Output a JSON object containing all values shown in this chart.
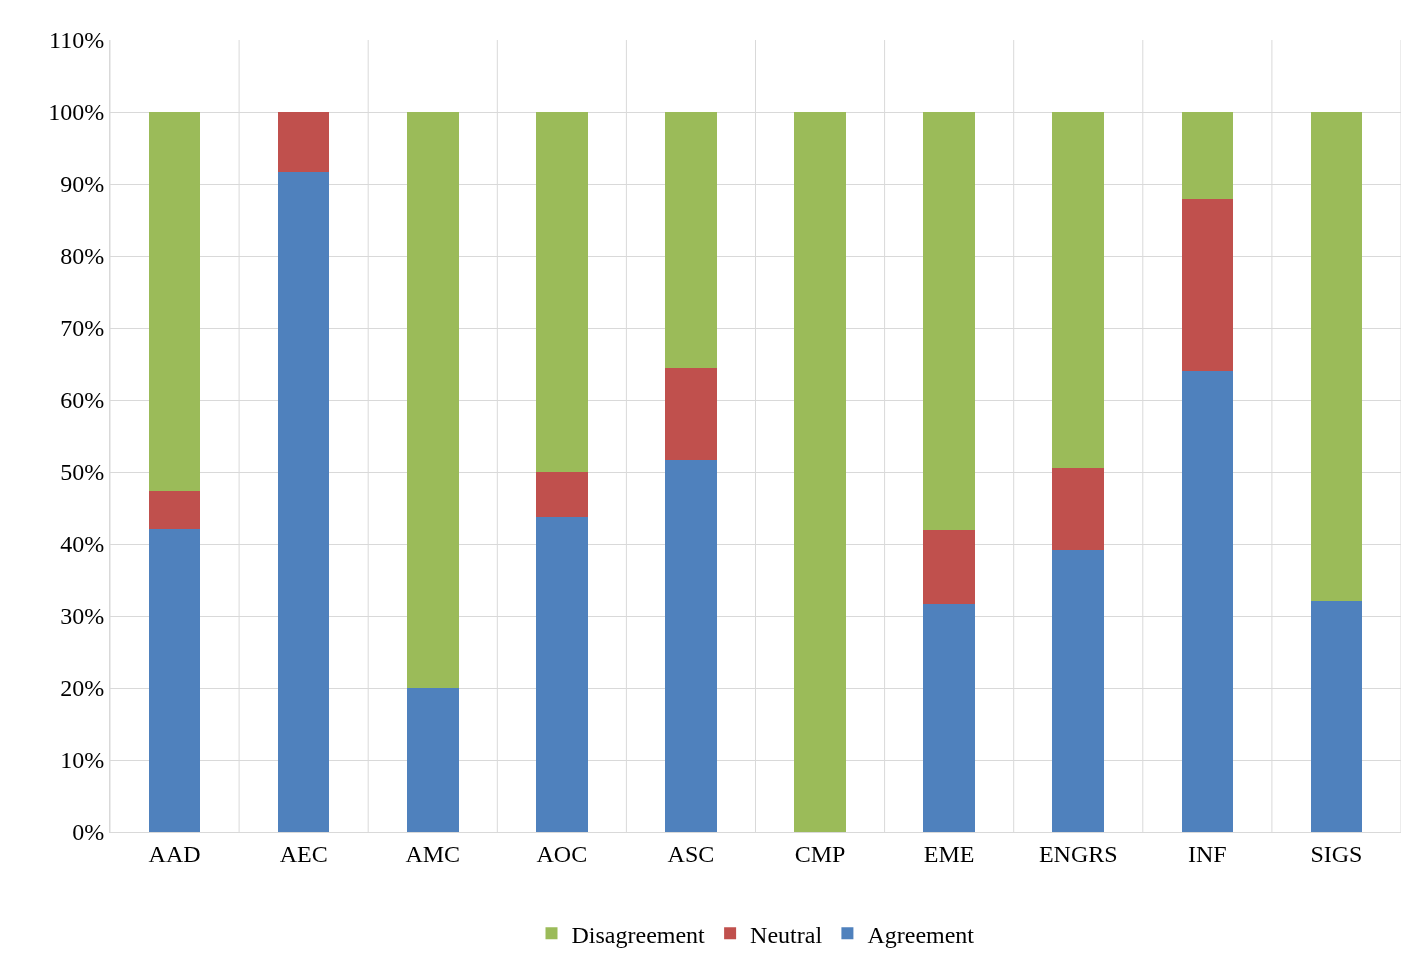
{
  "chart_data": {
    "type": "bar",
    "stacked": true,
    "categories": [
      "AAD",
      "AEC",
      "AMC",
      "AOC",
      "ASC",
      "CMP",
      "EME",
      "ENGRS",
      "INF",
      "SIGS"
    ],
    "series": [
      {
        "name": "Agreement",
        "color": "#4f81bd",
        "values": [
          42.1,
          91.7,
          20,
          43.8,
          51.6,
          0,
          31.6,
          39.1,
          64.0,
          32.1
        ]
      },
      {
        "name": "Neutral",
        "color": "#c0504d",
        "values": [
          5.2,
          8.3,
          0,
          6.2,
          12.8,
          0,
          10.4,
          11.5,
          23.9,
          0
        ]
      },
      {
        "name": "Disagreement",
        "color": "#9bbb59",
        "values": [
          52.7,
          0,
          80,
          50,
          35.6,
          100,
          58,
          49.4,
          12.1,
          67.9
        ]
      }
    ],
    "ylim": [
      0,
      110
    ],
    "yticks": [
      {
        "value": 0,
        "label": "0%"
      },
      {
        "value": 10,
        "label": "10%"
      },
      {
        "value": 20,
        "label": "20%"
      },
      {
        "value": 30,
        "label": "30%"
      },
      {
        "value": 40,
        "label": "40%"
      },
      {
        "value": 50,
        "label": "50%"
      },
      {
        "value": 60,
        "label": "60%"
      },
      {
        "value": 70,
        "label": "70%"
      },
      {
        "value": 80,
        "label": "80%"
      },
      {
        "value": 90,
        "label": "90%"
      },
      {
        "value": 100,
        "label": "100%"
      },
      {
        "value": 110,
        "label": "110%"
      }
    ],
    "grid": true,
    "legend": "bottom"
  }
}
